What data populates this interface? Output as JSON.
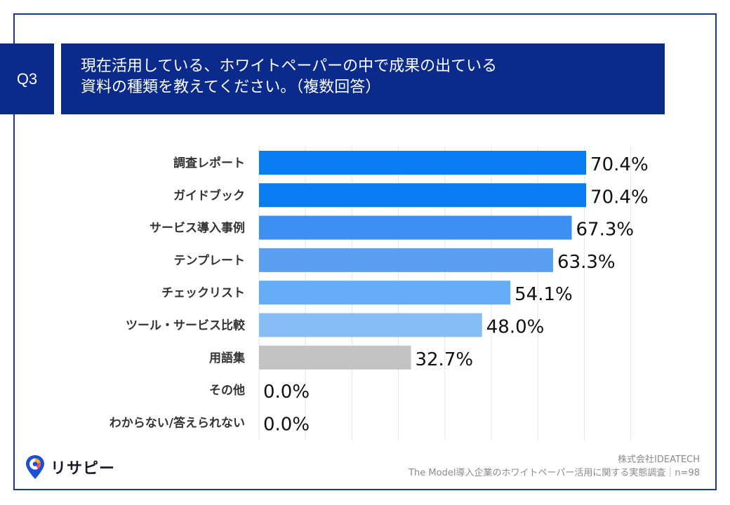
{
  "question": {
    "label": "Q3",
    "title_line1": "現在活用している、ホワイトペーパーの中で成果の出ている",
    "title_line2": "資料の種類を教えてください。（複数回答）"
  },
  "footer": {
    "company": "株式会社IDEATECH",
    "survey": "The Model導入企業のホワイトペーパー活用に関する実態調査｜n=98"
  },
  "logo": {
    "text": "リサピー"
  },
  "colors": {
    "brand_navy": "#0a2b8c",
    "frame": "#1a3a8a",
    "bars": [
      "#0a7cf2",
      "#0a7cf2",
      "#3d8ff2",
      "#5aa0f2",
      "#64acf5",
      "#86bdf7",
      "#c3c3c3",
      "#c3c3c3",
      "#c3c3c3"
    ]
  },
  "chart_data": {
    "type": "bar",
    "orientation": "horizontal",
    "categories": [
      "調査レポート",
      "ガイドブック",
      "サービス導入事例",
      "テンプレート",
      "チェックリスト",
      "ツール・サービス比較",
      "用語集",
      "その他",
      "わからない/答えられない"
    ],
    "values": [
      70.4,
      70.4,
      67.3,
      63.3,
      54.1,
      48.0,
      32.7,
      0.0,
      0.0
    ],
    "value_labels": [
      "70.4%",
      "70.4%",
      "67.3%",
      "63.3%",
      "54.1%",
      "48.0%",
      "32.7%",
      "0.0%",
      "0.0%"
    ],
    "unit": "%",
    "xlim": [
      0,
      80
    ],
    "grid": true
  }
}
